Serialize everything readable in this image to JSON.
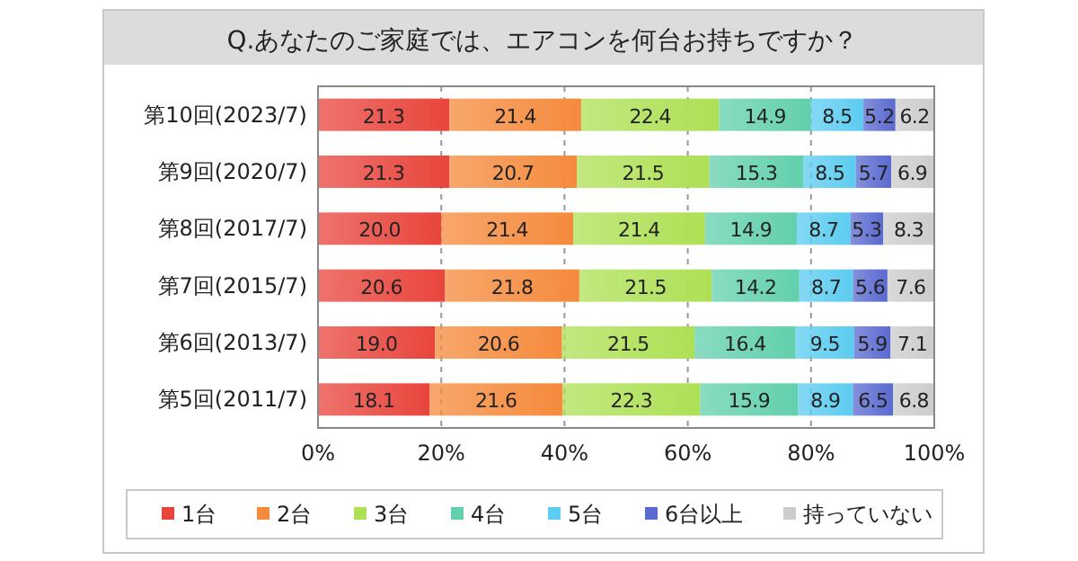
{
  "chart_data": {
    "type": "bar",
    "orientation": "horizontal",
    "stacked": true,
    "title": "Q.あなたのご家庭では、エアコンを何台お持ちですか？",
    "categories": [
      "第10回(2023/7)",
      "第9回(2020/7)",
      "第8回(2017/7)",
      "第7回(2015/7)",
      "第6回(2013/7)",
      "第5回(2011/7)"
    ],
    "series": [
      {
        "name": "1台",
        "color": "#e8453c",
        "values": [
          21.3,
          21.3,
          20.0,
          20.6,
          19.0,
          18.1
        ],
        "value_labels": [
          "21.3",
          "21.3",
          "20.0",
          "20.6",
          "19.0",
          "18.1"
        ]
      },
      {
        "name": "2台",
        "color": "#f58a3c",
        "values": [
          21.4,
          20.7,
          21.4,
          21.8,
          20.6,
          21.6
        ],
        "value_labels": [
          "21.4",
          "20.7",
          "21.4",
          "21.8",
          "20.6",
          "21.6"
        ]
      },
      {
        "name": "3台",
        "color": "#aee055",
        "values": [
          22.4,
          21.5,
          21.4,
          21.5,
          21.5,
          22.3
        ],
        "value_labels": [
          "22.4",
          "21.5",
          "21.4",
          "21.5",
          "21.5",
          "22.3"
        ]
      },
      {
        "name": "4台",
        "color": "#62d0ad",
        "values": [
          14.9,
          15.3,
          14.9,
          14.2,
          16.4,
          15.9
        ],
        "value_labels": [
          "14.9",
          "15.3",
          "14.9",
          "14.2",
          "16.4",
          "15.9"
        ]
      },
      {
        "name": "5台",
        "color": "#5cccf0",
        "values": [
          8.5,
          8.5,
          8.7,
          8.7,
          9.5,
          8.9
        ],
        "value_labels": [
          "8.5",
          "8.5",
          "8.7",
          "8.7",
          "9.5",
          "8.9"
        ]
      },
      {
        "name": "6台以上",
        "color": "#5a6ad0",
        "values": [
          5.2,
          5.7,
          5.3,
          5.6,
          5.9,
          6.5
        ],
        "value_labels": [
          "5.2",
          "5.7",
          "5.3",
          "5.6",
          "5.9",
          "6.5"
        ]
      },
      {
        "name": "持っていない",
        "color": "#cccccc",
        "values": [
          6.2,
          6.9,
          8.3,
          7.6,
          7.1,
          6.8
        ],
        "value_labels": [
          "6.2",
          "6.9",
          "8.3",
          "7.6",
          "7.1",
          "6.8"
        ]
      }
    ],
    "xlim": [
      0,
      100
    ],
    "xticks": [
      {
        "value": 0,
        "label": "0%"
      },
      {
        "value": 20,
        "label": "20%"
      },
      {
        "value": 40,
        "label": "40%"
      },
      {
        "value": 60,
        "label": "60%"
      },
      {
        "value": 80,
        "label": "80%"
      },
      {
        "value": 100,
        "label": "100%"
      }
    ],
    "grid": "x",
    "legend": "bottom"
  }
}
